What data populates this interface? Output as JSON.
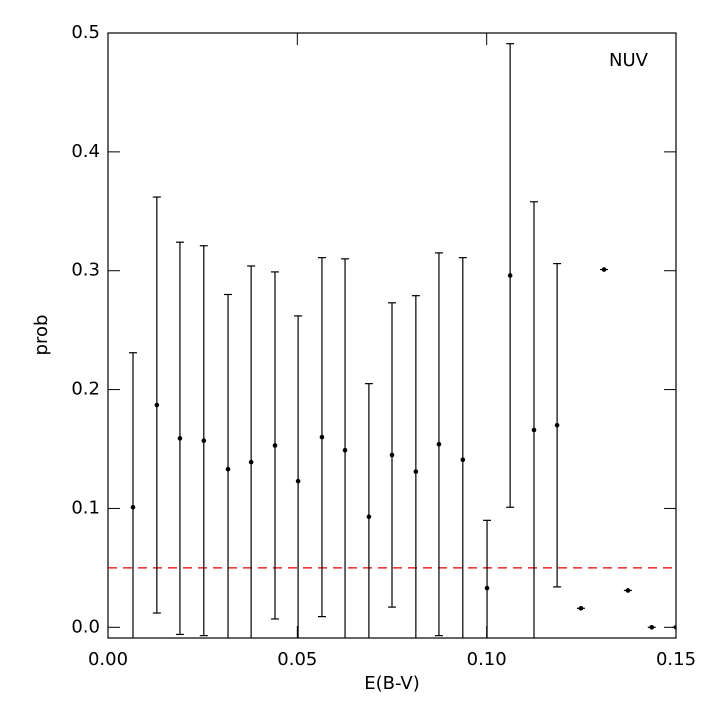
{
  "chart_data": {
    "type": "errorbar",
    "xlabel": "E(B-V)",
    "ylabel": "prob",
    "annotation": "NUV",
    "xlim": [
      0,
      0.15
    ],
    "ylim": [
      -0.009,
      0.5
    ],
    "xticks": [
      {
        "value": 0,
        "label": "0.00"
      },
      {
        "value": 0.05,
        "label": "0.05"
      },
      {
        "value": 0.1,
        "label": "0.10"
      },
      {
        "value": 0.15,
        "label": "0.15"
      }
    ],
    "yticks": [
      {
        "value": 0,
        "label": "0.0"
      },
      0.1,
      0.2,
      0.3,
      0.4,
      0.5
    ],
    "hline": {
      "value": 0.05,
      "color": "#e00000"
    },
    "series": [
      {
        "color": "#000000",
        "x": [
          0.0066,
          0.0129,
          0.019,
          0.0253,
          0.0317,
          0.0378,
          0.0441,
          0.0502,
          0.0565,
          0.0626,
          0.0689,
          0.075,
          0.0813,
          0.0874,
          0.0937,
          0.1001,
          0.1062,
          0.1125,
          0.1186,
          0.1249,
          0.131,
          0.1373,
          0.1436,
          0.15
        ],
        "values": [
          0.101,
          0.187,
          0.159,
          0.157,
          0.133,
          0.139,
          0.153,
          0.123,
          0.16,
          0.149,
          0.093,
          0.145,
          0.131,
          0.154,
          0.141,
          0.033,
          0.296,
          0.166,
          0.17,
          0.016,
          0.301,
          0.031,
          0.0,
          0.0
        ],
        "errors": [
          0.13,
          0.175,
          0.165,
          0.164,
          0.147,
          0.165,
          0.146,
          0.139,
          0.151,
          0.161,
          0.112,
          0.128,
          0.148,
          0.161,
          0.17,
          0.057,
          0.195,
          0.192,
          0.136,
          0,
          0,
          0,
          0,
          0
        ]
      }
    ]
  }
}
